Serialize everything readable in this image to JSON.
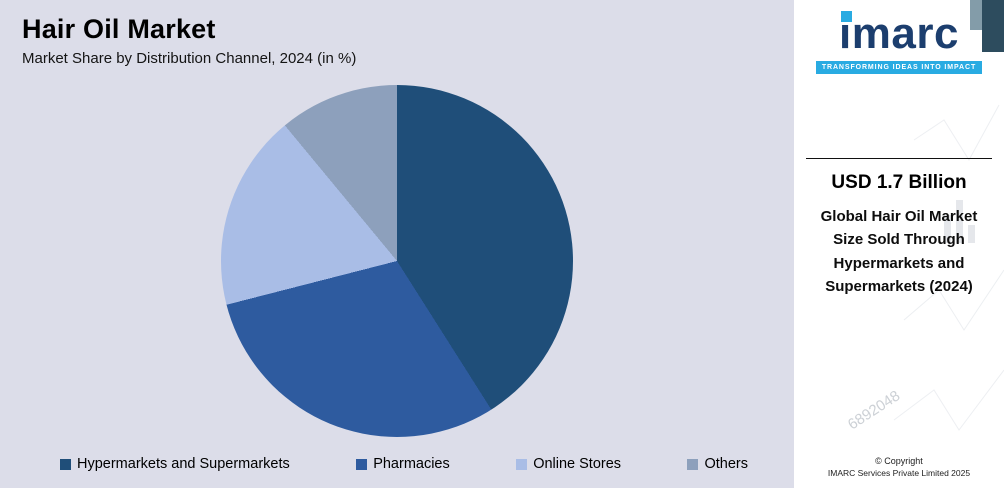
{
  "header": {
    "title": "Hair Oil Market",
    "subtitle": "Market Share by Distribution Channel, 2024 (in %)"
  },
  "chart_data": {
    "type": "pie",
    "title": "Hair Oil Market",
    "subtitle": "Market Share by Distribution Channel, 2024 (in %)",
    "categories": [
      "Hypermarkets and Supermarkets",
      "Pharmacies",
      "Online Stores",
      "Others"
    ],
    "values": [
      41,
      30,
      18,
      11
    ],
    "unit": "%",
    "colors": [
      "#1f4e79",
      "#2e5b9f",
      "#a9bde6",
      "#8da0bc"
    ],
    "legend_position": "bottom",
    "start_angle_deg": 0,
    "direction": "clockwise"
  },
  "sidebar": {
    "logo_text": "imarc",
    "tagline": "TRANSFORMING IDEAS INTO IMPACT",
    "stat_value": "USD 1.7 Billion",
    "stat_description": "Global Hair Oil Market Size Sold Through Hypermarkets and Supermarkets (2024)",
    "copyright_line1": "© Copyright",
    "copyright_line2": "IMARC Services Private Limited 2025",
    "watermark_number": "6892048",
    "accent_color": "#29abe2",
    "brand_navy": "#1c3e6e"
  }
}
